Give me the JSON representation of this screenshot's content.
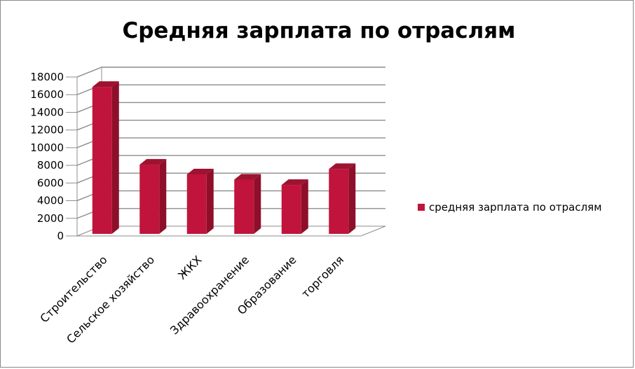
{
  "chart_data": {
    "type": "bar",
    "title": "Средняя зарплата по отраслям",
    "categories": [
      "Строительство",
      "Сельское хозяйство",
      "ЖКХ",
      "Здравоохранение",
      "Образование",
      "торговля"
    ],
    "series": [
      {
        "name": "средняя зарплата по отраслям",
        "values": [
          17200,
          8400,
          7300,
          6700,
          6100,
          7900
        ]
      }
    ],
    "yticks": [
      "0",
      "2000",
      "4000",
      "6000",
      "8000",
      "10000",
      "12000",
      "14000",
      "16000",
      "18000"
    ],
    "ylim": [
      0,
      18000
    ],
    "grid": true,
    "legend_position": "right",
    "bar_color": "#c0143c",
    "three_d": true
  }
}
